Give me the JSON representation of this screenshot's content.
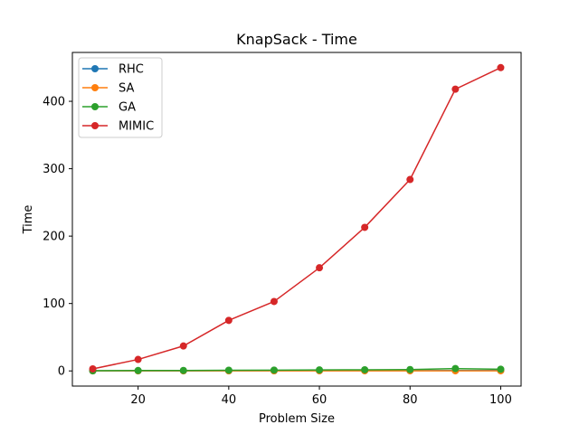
{
  "chart_data": {
    "type": "line",
    "title": "KnapSack - Time",
    "xlabel": "Problem Size",
    "ylabel": "Time",
    "xlim": [
      5.5,
      104.5
    ],
    "ylim": [
      -22.5,
      472.5
    ],
    "xticks": [
      20,
      40,
      60,
      80,
      100
    ],
    "yticks": [
      0,
      100,
      200,
      300,
      400
    ],
    "legend_position": "upper-left",
    "grid": false,
    "x": [
      10,
      20,
      30,
      40,
      50,
      60,
      70,
      80,
      90,
      100
    ],
    "series": [
      {
        "name": "RHC",
        "color": "#1f77b4",
        "values": [
          0.1,
          0.2,
          0.2,
          0.3,
          0.3,
          0.4,
          0.4,
          0.5,
          0.6,
          0.6
        ]
      },
      {
        "name": "SA",
        "color": "#ff7f0e",
        "values": [
          0.1,
          0.1,
          0.1,
          0.1,
          0.1,
          0.2,
          0.2,
          0.2,
          0.2,
          0.2
        ]
      },
      {
        "name": "GA",
        "color": "#2ca02c",
        "values": [
          0.3,
          0.6,
          0.7,
          1.0,
          1.2,
          1.5,
          1.7,
          2.0,
          3.5,
          2.5
        ]
      },
      {
        "name": "MIMIC",
        "color": "#d62728",
        "values": [
          3,
          17,
          37,
          75,
          103,
          153,
          213,
          284,
          418,
          450
        ]
      }
    ]
  }
}
